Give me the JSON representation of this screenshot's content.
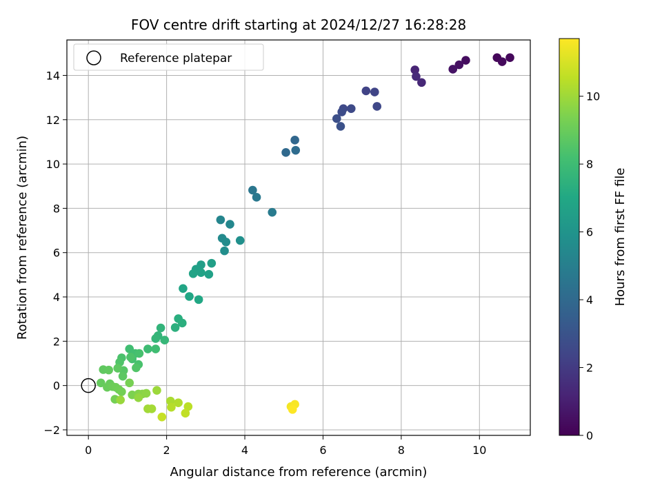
{
  "chart_data": {
    "type": "scatter",
    "title": "FOV centre drift starting at 2024/12/27 16:28:28",
    "xlabel": "Angular distance from reference (arcmin)",
    "ylabel": "Rotation from reference (arcmin)",
    "xlim": [
      -0.55,
      11.3
    ],
    "ylim": [
      -2.25,
      15.6
    ],
    "xticks": [
      0,
      2,
      4,
      6,
      8,
      10
    ],
    "yticks": [
      -2,
      0,
      2,
      4,
      6,
      8,
      10,
      12,
      14
    ],
    "grid": true,
    "legend": {
      "placement": "top-left",
      "entries": [
        "Reference platepar"
      ]
    },
    "reference_point": {
      "x": 0,
      "y": 0,
      "marker": "open-circle"
    },
    "colorbar": {
      "label": "Hours from first FF file",
      "colormap": "viridis",
      "range": [
        0,
        11.7
      ],
      "ticks": [
        0,
        2,
        4,
        6,
        8,
        10
      ]
    },
    "series": [
      {
        "x": [
          10.45,
          10.78,
          10.58,
          9.65,
          9.48,
          9.32,
          8.35,
          8.52,
          8.38,
          7.1,
          7.32,
          7.38,
          6.52,
          6.72,
          6.48,
          6.35,
          6.45,
          5.28,
          5.05,
          5.3,
          4.2,
          4.3,
          4.7,
          3.38,
          3.62,
          3.42,
          3.52,
          3.48,
          3.88,
          2.88,
          3.15,
          2.75,
          3.08,
          2.88,
          2.68,
          2.42,
          2.58,
          2.82,
          2.3,
          2.4,
          2.22,
          1.85,
          1.78,
          1.72,
          1.95,
          1.52,
          1.72,
          1.05,
          1.2,
          1.12,
          1.3,
          1.28,
          0.85,
          1.08,
          0.8,
          1.22,
          0.9,
          0.88,
          0.75,
          0.38,
          0.52,
          0.32,
          0.55,
          0.48,
          0.62,
          0.7,
          0.78,
          0.85,
          0.68,
          1.05,
          1.12,
          1.28,
          1.38,
          1.48,
          1.28,
          0.82,
          1.75,
          1.52,
          1.62,
          2.1,
          2.3,
          2.12,
          2.55,
          2.48,
          1.88,
          5.18,
          5.28,
          5.22
        ],
        "y": [
          14.8,
          14.8,
          14.62,
          14.68,
          14.48,
          14.28,
          14.25,
          13.68,
          13.95,
          13.3,
          13.25,
          12.6,
          12.5,
          12.5,
          12.35,
          12.05,
          11.7,
          11.08,
          10.52,
          10.62,
          8.82,
          8.5,
          7.82,
          7.48,
          7.28,
          6.65,
          6.48,
          6.08,
          6.55,
          5.45,
          5.52,
          5.25,
          5.02,
          5.1,
          5.05,
          4.38,
          4.02,
          3.88,
          3.02,
          2.82,
          2.62,
          2.6,
          2.25,
          2.12,
          2.05,
          1.65,
          1.65,
          1.65,
          1.45,
          1.2,
          1.45,
          0.95,
          1.25,
          1.28,
          1.05,
          0.8,
          0.68,
          0.42,
          0.78,
          0.72,
          0.7,
          0.12,
          0.08,
          -0.08,
          -0.05,
          -0.08,
          -0.18,
          -0.28,
          -0.62,
          0.12,
          -0.42,
          -0.38,
          -0.38,
          -0.35,
          -0.55,
          -0.65,
          -0.22,
          -1.05,
          -1.05,
          -0.7,
          -0.78,
          -0.98,
          -0.95,
          -1.25,
          -1.42,
          -0.95,
          -0.85,
          -1.08
        ],
        "hours": [
          0.2,
          0.25,
          0.3,
          0.4,
          0.5,
          0.6,
          1.2,
          1.3,
          1.4,
          2.3,
          2.4,
          2.5,
          2.55,
          2.6,
          2.7,
          2.8,
          2.9,
          3.9,
          4.0,
          4.1,
          4.6,
          4.7,
          4.8,
          5.3,
          5.4,
          5.5,
          5.6,
          5.7,
          5.8,
          6.5,
          6.55,
          6.6,
          6.65,
          6.7,
          6.75,
          6.85,
          6.9,
          6.95,
          7.3,
          7.35,
          7.4,
          7.6,
          7.65,
          7.7,
          7.75,
          8.0,
          8.05,
          8.1,
          8.15,
          8.2,
          8.25,
          8.3,
          8.35,
          8.4,
          8.45,
          8.5,
          8.6,
          8.7,
          8.75,
          8.8,
          8.85,
          8.9,
          8.95,
          9.0,
          9.05,
          9.1,
          9.15,
          9.2,
          9.25,
          9.3,
          9.4,
          9.5,
          9.6,
          9.7,
          9.8,
          9.9,
          9.95,
          10.05,
          10.1,
          10.2,
          10.3,
          10.4,
          10.5,
          10.6,
          10.7,
          11.5,
          11.6,
          11.7
        ]
      }
    ]
  }
}
